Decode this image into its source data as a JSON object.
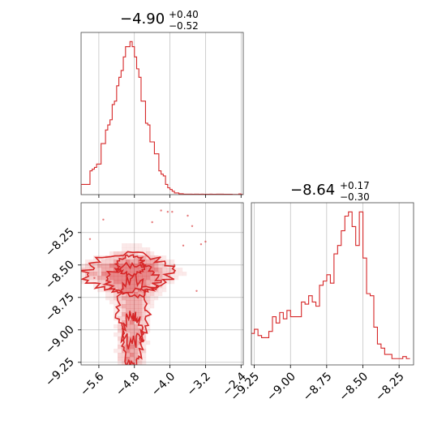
{
  "figure": {
    "accent_color": "#d62728",
    "grid_color": "#b0b0b0"
  },
  "titles": {
    "p1": {
      "median": "−4.90",
      "plus": "+0.40",
      "minus": "−0.52"
    },
    "p2": {
      "median": "−8.64",
      "plus": "+0.17",
      "minus": "−0.30"
    }
  },
  "chart_data": [
    {
      "type": "histogram",
      "panel": "top-left",
      "title": "−4.90 +0.40 −0.52",
      "style": "step",
      "color": "#d62728",
      "xlim": [
        -6.0,
        -2.35
      ],
      "xticks": [
        -5.6,
        -4.8,
        -4.0,
        -3.2,
        -2.4
      ],
      "tick_labels_shown": false,
      "grid": true,
      "x": [
        -5.975,
        -5.925,
        -5.875,
        -5.825,
        -5.775,
        -5.725,
        -5.675,
        -5.625,
        -5.575,
        -5.525,
        -5.475,
        -5.425,
        -5.375,
        -5.325,
        -5.275,
        -5.225,
        -5.175,
        -5.125,
        -5.075,
        -5.025,
        -4.975,
        -4.925,
        -4.875,
        -4.825,
        -4.775,
        -4.725,
        -4.675,
        -4.625,
        -4.575,
        -4.525,
        -4.475,
        -4.425,
        -4.375,
        -4.325,
        -4.275,
        -4.225,
        -4.175,
        -4.125,
        -4.075,
        -4.025,
        -3.975,
        -3.925,
        -3.875,
        -3.825,
        -3.775,
        -3.725,
        -3.675,
        -3.625,
        -3.575,
        -3.525,
        -3.475,
        -3.425,
        -3.375,
        -3.325,
        -3.275,
        -3.225,
        -3.175,
        -3.125,
        -3.075,
        -3.025,
        -2.975,
        -2.925,
        -2.875,
        -2.825,
        -2.775,
        -2.725,
        -2.675,
        -2.625,
        -2.575,
        -2.525,
        -2.475,
        -2.425,
        -2.375
      ],
      "values": [
        6,
        6,
        6,
        6,
        14,
        15,
        16,
        18,
        18,
        30,
        30,
        38,
        41,
        44,
        53,
        55,
        64,
        69,
        73,
        81,
        87,
        87,
        90,
        87,
        81,
        74,
        69,
        55,
        55,
        42,
        41,
        31,
        31,
        24,
        24,
        14,
        12,
        11,
        6,
        4,
        3,
        2,
        1,
        1,
        0.5,
        0.5,
        0.3,
        0.3,
        0.3,
        0.3,
        0.2,
        0.3,
        0.3,
        0.2,
        0.3,
        0.2,
        0.2,
        0.2,
        0.3,
        0.2,
        0.2,
        0.3,
        0.3,
        0.3,
        0.2,
        0.2,
        0.2,
        0.2,
        0.1,
        0.1,
        0.1,
        0.4,
        0.1
      ]
    },
    {
      "type": "histogram",
      "panel": "bottom-right",
      "title": "−8.64 +0.17 −0.30",
      "style": "step",
      "color": "#d62728",
      "xlim": [
        -9.27,
        -8.15
      ],
      "xticks": [
        -9.25,
        -9.0,
        -8.75,
        -8.5,
        -8.25
      ],
      "tick_labels": [
        "−9.25",
        "−9.00",
        "−8.75",
        "−8.50",
        "−8.25"
      ],
      "grid": true,
      "x": [
        -9.262,
        -9.237,
        -9.212,
        -9.187,
        -9.162,
        -9.137,
        -9.112,
        -9.087,
        -9.062,
        -9.037,
        -9.012,
        -8.987,
        -8.962,
        -8.937,
        -8.912,
        -8.887,
        -8.862,
        -8.837,
        -8.812,
        -8.787,
        -8.762,
        -8.737,
        -8.712,
        -8.687,
        -8.662,
        -8.637,
        -8.612,
        -8.587,
        -8.562,
        -8.537,
        -8.512,
        -8.487,
        -8.462,
        -8.437,
        -8.412,
        -8.387,
        -8.362,
        -8.337,
        -8.312,
        -8.287,
        -8.262,
        -8.237,
        -8.212,
        -8.187
      ],
      "values": [
        15,
        17,
        14,
        13,
        13,
        16,
        23,
        20,
        25,
        22,
        26,
        23,
        23,
        23,
        30,
        29,
        33,
        30,
        28,
        38,
        40,
        43,
        39,
        53,
        57,
        64,
        71,
        73,
        66,
        57,
        73,
        51,
        34,
        33,
        18,
        10,
        8,
        5,
        5,
        3,
        3,
        3,
        4,
        3
      ]
    },
    {
      "type": "contour",
      "panel": "bottom-left",
      "color": "#d62728",
      "xlim": [
        -6.0,
        -2.35
      ],
      "ylim": [
        -9.27,
        -8.02
      ],
      "xticks": [
        -5.6,
        -4.8,
        -4.0,
        -3.2,
        -2.4
      ],
      "x_tick_labels": [
        "−5.6",
        "−4.8",
        "−4.0",
        "−3.2",
        "−2.4"
      ],
      "yticks": [
        -9.25,
        -9.0,
        -8.75,
        -8.5,
        -8.25
      ],
      "y_tick_labels": [
        "−9.25",
        "−9.00",
        "−8.75",
        "−8.50",
        "−8.25"
      ],
      "grid": true
    }
  ]
}
